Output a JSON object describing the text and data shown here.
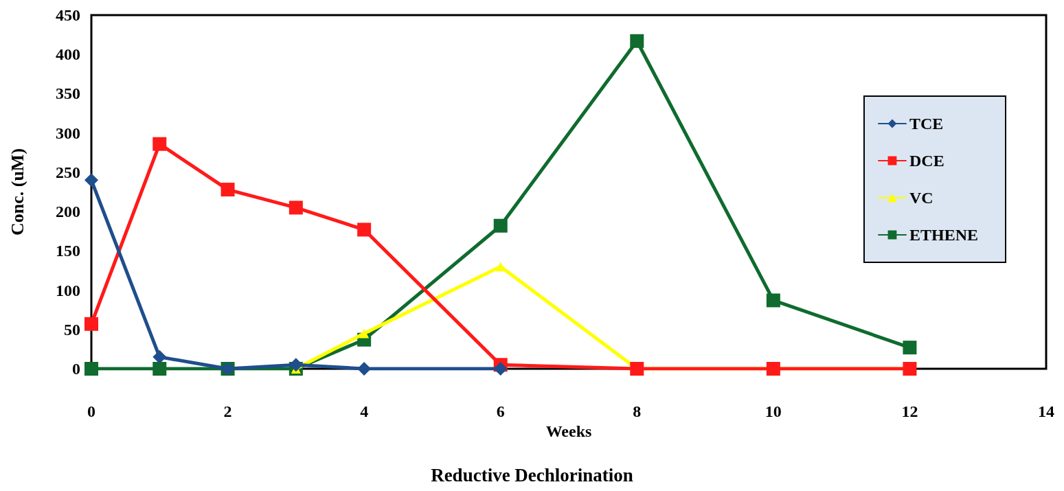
{
  "chart_data": {
    "type": "line",
    "title": "Reductive Dechlorination",
    "xlabel": "Weeks",
    "ylabel": "Conc. (uM)",
    "xlim": [
      0,
      14
    ],
    "xticks": [
      0,
      2,
      4,
      6,
      8,
      10,
      12,
      14
    ],
    "ylim": [
      0,
      450
    ],
    "yticks": [
      0,
      50,
      100,
      150,
      200,
      250,
      300,
      350,
      400,
      450
    ],
    "grid": false,
    "legend": "right",
    "series": [
      {
        "name": "TCE",
        "color": "#1f4e8c",
        "marker": "diamond",
        "x": [
          0,
          1,
          2,
          3,
          4,
          6
        ],
        "values": [
          240,
          15,
          0,
          5,
          0,
          0
        ]
      },
      {
        "name": "DCE",
        "color": "#ff1a1a",
        "marker": "square",
        "x": [
          0,
          1,
          2,
          3,
          4,
          6,
          8,
          10,
          12
        ],
        "values": [
          57,
          286,
          228,
          205,
          177,
          5,
          0,
          0,
          0
        ]
      },
      {
        "name": "VC",
        "color": "#ffff00",
        "marker": "triangle",
        "x": [
          3,
          4,
          6,
          8,
          10,
          12
        ],
        "values": [
          0,
          45,
          130,
          0,
          0,
          0
        ]
      },
      {
        "name": "ETHENE",
        "color": "#0f6b2e",
        "marker": "square",
        "x": [
          0,
          1,
          2,
          3,
          4,
          6,
          8,
          10,
          12
        ],
        "values": [
          0,
          0,
          0,
          0,
          37,
          182,
          417,
          87,
          27
        ]
      }
    ]
  }
}
